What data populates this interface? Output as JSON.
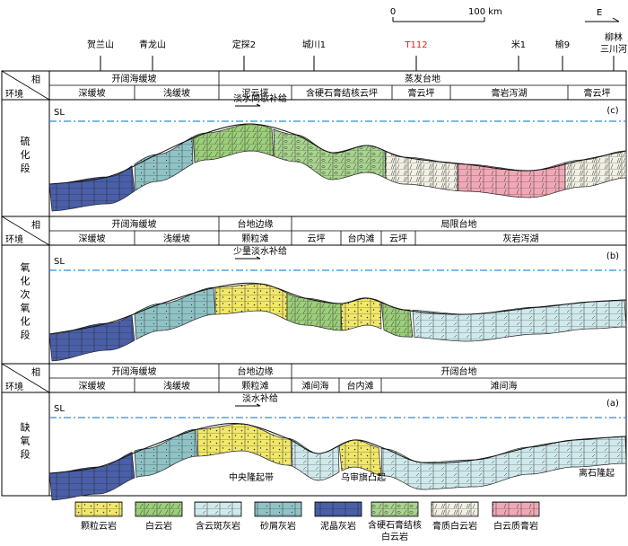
{
  "scale": {
    "zero": "0",
    "end": "100 km"
  },
  "compass": "E",
  "wells": [
    {
      "label": "贺兰山",
      "red": false
    },
    {
      "label": "青龙山",
      "red": false
    },
    {
      "label": "定探2",
      "red": false
    },
    {
      "label": "城川1",
      "red": false
    },
    {
      "label": "T112",
      "red": true
    },
    {
      "label": "米1",
      "red": false
    },
    {
      "label": "榆9",
      "red": false
    },
    {
      "label": "柳林",
      "red": false
    },
    {
      "label": "三川河",
      "red": false
    }
  ],
  "header_labels": {
    "facies": "相",
    "environment": "环境"
  },
  "sections": [
    {
      "tag": "(c)",
      "stage": "硫化段",
      "sl": "SL",
      "supply": "淡水间歇补给",
      "facies": [
        "开阔海缓坡",
        "蒸发台地"
      ],
      "environments": [
        "深缓坡",
        "浅缓坡",
        "泥云坪",
        "含硬石膏结核云坪",
        "膏云坪",
        "膏岩泻湖",
        "膏云坪"
      ],
      "bottom_labels": []
    },
    {
      "tag": "(b)",
      "stage": "氧化-次氧化段",
      "sl": "SL",
      "supply": "少量淡水补给",
      "facies": [
        "开阔海缓坡",
        "台地边缘",
        "局限台地"
      ],
      "environments": [
        "深缓坡",
        "浅缓坡",
        "颗粒滩",
        "云坪",
        "台内滩",
        "云坪",
        "灰岩泻湖"
      ],
      "bottom_labels": []
    },
    {
      "tag": "(a)",
      "stage": "缺氧段",
      "sl": "SL",
      "supply": "淡水补给",
      "facies": [
        "开阔海缓坡",
        "台地边缘",
        "开阔台地"
      ],
      "environments": [
        "深缓坡",
        "浅缓坡",
        "颗粒滩",
        "滩间海",
        "台内滩",
        "滩间海"
      ],
      "bottom_labels": [
        "中央隆起带",
        "乌审旗凸起",
        "离石隆起"
      ]
    }
  ],
  "legend": [
    {
      "label": "颗粒云岩",
      "color": "#f2e86a"
    },
    {
      "label": "白云岩",
      "color": "#9ccf7a"
    },
    {
      "label": "含云斑灰岩",
      "color": "#cfe9ec"
    },
    {
      "label": "砂屑灰岩",
      "color": "#8fc3c6"
    },
    {
      "label": "泥晶灰岩",
      "color": "#4a5fa8"
    },
    {
      "label": "含硬石膏结核白云岩",
      "color": "#a9d58e"
    },
    {
      "label": "膏质白云岩",
      "color": "#f3f1e4"
    },
    {
      "label": "白云质膏岩",
      "color": "#f1a8b6"
    }
  ]
}
